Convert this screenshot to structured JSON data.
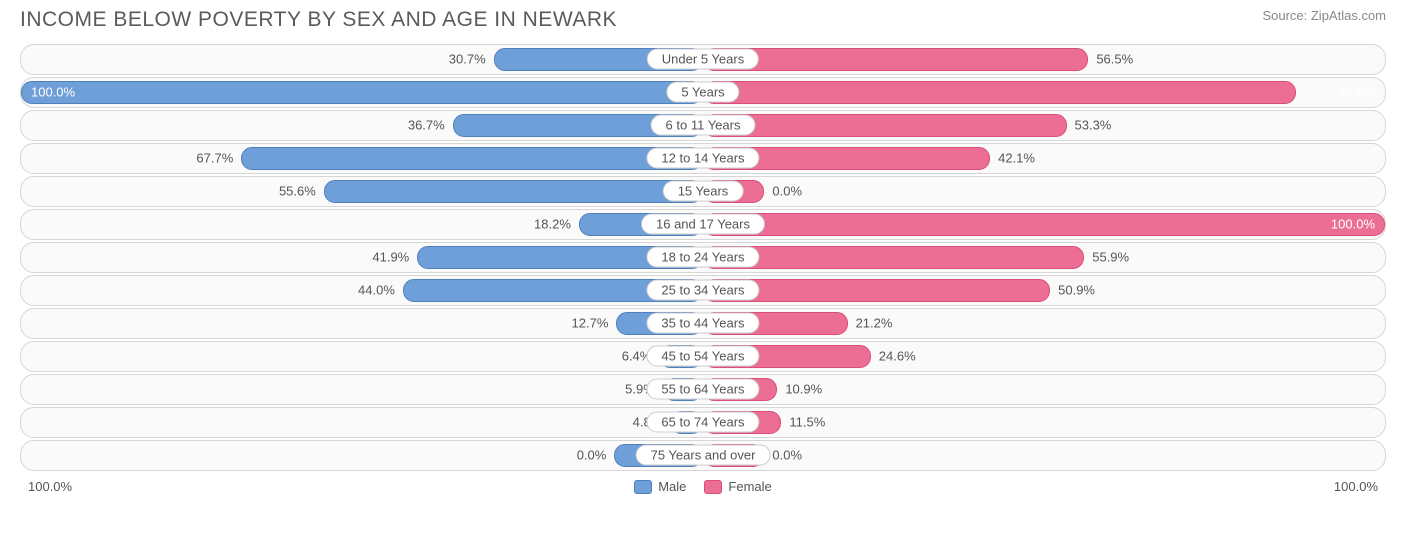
{
  "title": "INCOME BELOW POVERTY BY SEX AND AGE IN NEWARK",
  "source": "Source: ZipAtlas.com",
  "chart": {
    "type": "diverging-bar",
    "male_color": "#6f9fd8",
    "male_border": "#4f80ba",
    "female_color": "#ed6e94",
    "female_border": "#d84e77",
    "track_bg": "#fafafa",
    "track_border": "#d6d6d6",
    "label_bg": "#ffffff",
    "label_border": "#cccccc",
    "text_color": "#555555",
    "inside_text_color": "#ffffff",
    "value_fontsize": 13,
    "label_fontsize": 13,
    "row_height": 30.5,
    "row_gap": 2.5,
    "rows": [
      {
        "label": "Under 5 Years",
        "male": 30.7,
        "female": 56.5
      },
      {
        "label": "5 Years",
        "male": 100.0,
        "female": 87.0
      },
      {
        "label": "6 to 11 Years",
        "male": 36.7,
        "female": 53.3
      },
      {
        "label": "12 to 14 Years",
        "male": 67.7,
        "female": 42.1
      },
      {
        "label": "15 Years",
        "male": 55.6,
        "female": 0.0
      },
      {
        "label": "16 and 17 Years",
        "male": 18.2,
        "female": 100.0
      },
      {
        "label": "18 to 24 Years",
        "male": 41.9,
        "female": 55.9
      },
      {
        "label": "25 to 34 Years",
        "male": 44.0,
        "female": 50.9
      },
      {
        "label": "35 to 44 Years",
        "male": 12.7,
        "female": 21.2
      },
      {
        "label": "45 to 54 Years",
        "male": 6.4,
        "female": 24.6
      },
      {
        "label": "55 to 64 Years",
        "male": 5.9,
        "female": 10.9
      },
      {
        "label": "65 to 74 Years",
        "male": 4.8,
        "female": 11.5
      },
      {
        "label": "75 Years and over",
        "male": 0.0,
        "female": 0.0
      }
    ],
    "axis_left": "100.0%",
    "axis_right": "100.0%",
    "legend": {
      "male": "Male",
      "female": "Female"
    },
    "male_inside_threshold": 92,
    "female_inside_threshold": 82,
    "male_zero_min_width": 13,
    "female_zero_min_width": 9
  }
}
